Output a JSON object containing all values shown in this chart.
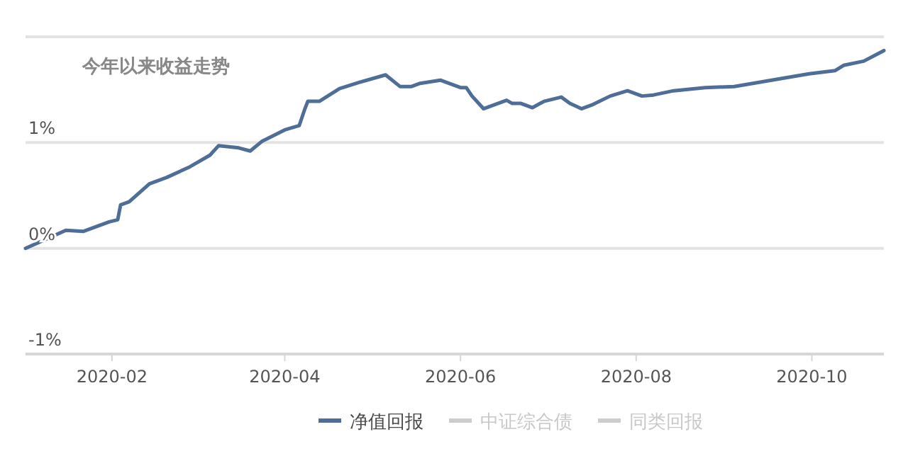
{
  "chart_data": {
    "type": "line",
    "title": "今年以来收益走势",
    "x": [
      "2020-01-02",
      "2020-01-16",
      "2020-01-22",
      "2020-01-31",
      "2020-02-03",
      "2020-02-04",
      "2020-02-07",
      "2020-02-14",
      "2020-02-20",
      "2020-02-28",
      "2020-03-06",
      "2020-03-09",
      "2020-03-16",
      "2020-03-20",
      "2020-03-24",
      "2020-04-01",
      "2020-04-06",
      "2020-04-08",
      "2020-04-09",
      "2020-04-13",
      "2020-04-20",
      "2020-04-27",
      "2020-05-06",
      "2020-05-11",
      "2020-05-15",
      "2020-05-18",
      "2020-05-25",
      "2020-06-01",
      "2020-06-03",
      "2020-06-05",
      "2020-06-09",
      "2020-06-12",
      "2020-06-17",
      "2020-06-19",
      "2020-06-22",
      "2020-06-26",
      "2020-06-30",
      "2020-07-06",
      "2020-07-09",
      "2020-07-13",
      "2020-07-17",
      "2020-07-23",
      "2020-07-29",
      "2020-08-03",
      "2020-08-07",
      "2020-08-14",
      "2020-08-25",
      "2020-09-04",
      "2020-09-17",
      "2020-09-30",
      "2020-10-09",
      "2020-10-12",
      "2020-10-19",
      "2020-10-26"
    ],
    "series": [
      {
        "name": "净值回报",
        "color": "#4f6e97",
        "values": [
          0,
          0.17,
          0.16,
          0.25,
          0.27,
          0.41,
          0.44,
          0.61,
          0.67,
          0.77,
          0.88,
          0.97,
          0.95,
          0.92,
          1.01,
          1.12,
          1.16,
          1.32,
          1.39,
          1.39,
          1.51,
          1.57,
          1.64,
          1.53,
          1.53,
          1.56,
          1.59,
          1.52,
          1.52,
          1.44,
          1.32,
          1.35,
          1.4,
          1.37,
          1.37,
          1.33,
          1.39,
          1.43,
          1.37,
          1.32,
          1.36,
          1.44,
          1.49,
          1.44,
          1.45,
          1.49,
          1.52,
          1.53,
          1.59,
          1.65,
          1.68,
          1.73,
          1.77,
          1.87
        ]
      },
      {
        "name": "中证综合债",
        "color": "#cccccc",
        "values": [
          null,
          null,
          null,
          null,
          null,
          null,
          null,
          null,
          null,
          null,
          null,
          null,
          null,
          null,
          null,
          null,
          null,
          null,
          null,
          null,
          null,
          null,
          null,
          null,
          null,
          null,
          null,
          null,
          null,
          null,
          null,
          null,
          null,
          null,
          null,
          null,
          null,
          null,
          null,
          null,
          null,
          null,
          null,
          null,
          null,
          null,
          null,
          null,
          null,
          null,
          null,
          null,
          null,
          null
        ]
      },
      {
        "name": "同类回报",
        "color": "#cccccc",
        "values": [
          null,
          null,
          null,
          null,
          null,
          null,
          null,
          null,
          null,
          null,
          null,
          null,
          null,
          null,
          null,
          null,
          null,
          null,
          null,
          null,
          null,
          null,
          null,
          null,
          null,
          null,
          null,
          null,
          null,
          null,
          null,
          null,
          null,
          null,
          null,
          null,
          null,
          null,
          null,
          null,
          null,
          null,
          null,
          null,
          null,
          null,
          null,
          null,
          null,
          null,
          null,
          null,
          null,
          null
        ]
      }
    ],
    "xlim": [
      "2020-01-02",
      "2020-10-26"
    ],
    "xticks": [
      "2020-02",
      "2020-04",
      "2020-06",
      "2020-08",
      "2020-10"
    ],
    "ylim": [
      -1,
      2
    ],
    "yticks": [
      {
        "value": -1,
        "label": "-1%"
      },
      {
        "value": 0,
        "label": "0%"
      },
      {
        "value": 1,
        "label": "1%"
      },
      {
        "value": 2,
        "label": null
      }
    ],
    "grid": "y",
    "legend": "bottom",
    "marker": "none",
    "line_style": "solid"
  }
}
